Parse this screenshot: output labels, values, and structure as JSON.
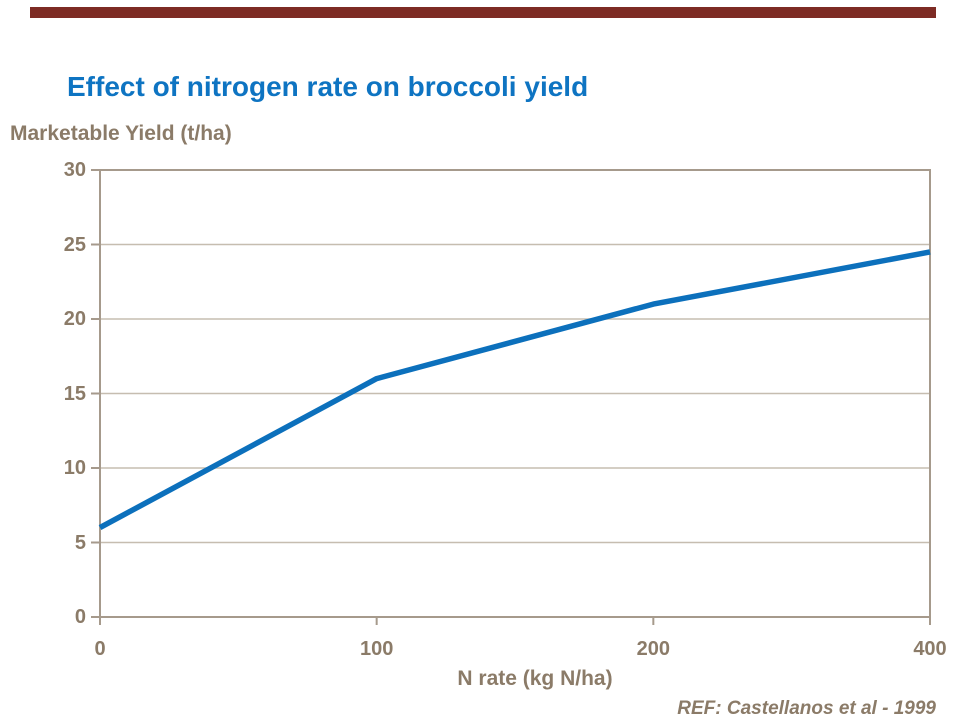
{
  "page": {
    "title": "Effect of nitrogen rate on broccoli yield",
    "reference": "REF: Castellanos et al - 1999"
  },
  "colors": {
    "title_blue": "#0e74c2",
    "line_blue": "#0c70bc",
    "text_taupe": "#8b7b68",
    "gridline": "#c6bdb0",
    "axis_border": "#a69a8c",
    "top_bar_maroon": "#7d2b24"
  },
  "chart_data": {
    "type": "line",
    "title": "Effect of nitrogen rate on broccoli yield",
    "categories": [
      "0",
      "100",
      "200",
      "400"
    ],
    "series": [
      {
        "name": "Marketable yield",
        "values": [
          6,
          16,
          21,
          24.5
        ]
      }
    ],
    "xlabel": "N rate (kg N/ha)",
    "ylabel": "Marketable Yield (t/ha)",
    "ylim": [
      0,
      30
    ],
    "yticks": [
      0,
      5,
      10,
      15,
      20,
      25,
      30
    ],
    "grid": "horizontal",
    "legend": "none",
    "x_axis_type": "category-equal-spacing",
    "source": "REF: Castellanos et al - 1999"
  }
}
